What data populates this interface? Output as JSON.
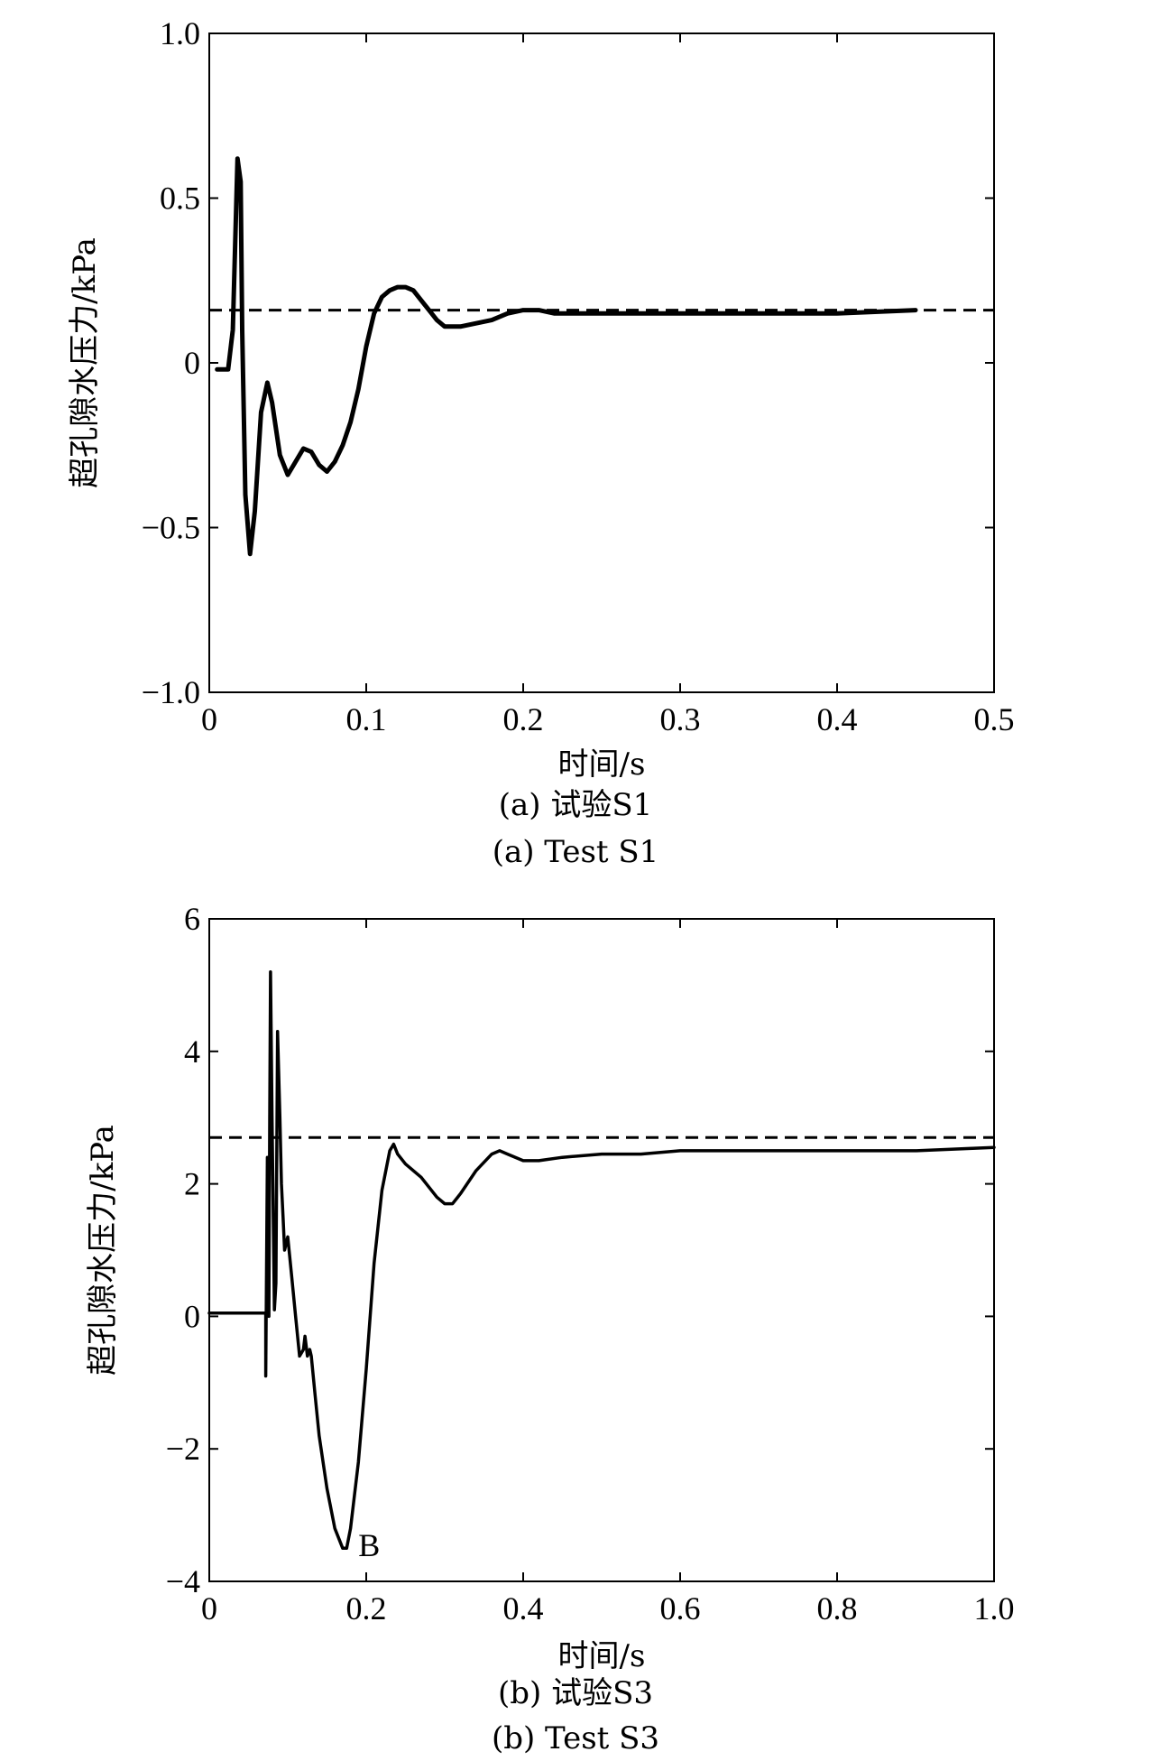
{
  "chart_data": [
    {
      "type": "line",
      "id": "a",
      "xlabel": "时间/s",
      "ylabel": "超孔隙水压力/kPa",
      "xlim": [
        0,
        0.5
      ],
      "ylim": [
        -1.0,
        1.0
      ],
      "xticks": [
        0,
        0.1,
        0.2,
        0.3,
        0.4,
        0.5
      ],
      "xtick_labels": [
        "0",
        "0.1",
        "0.2",
        "0.3",
        "0.4",
        "0.5"
      ],
      "yticks": [
        -1.0,
        -0.5,
        0,
        0.5,
        1.0
      ],
      "ytick_labels": [
        "−1.0",
        "−0.5",
        "0",
        "0.5",
        "1.0"
      ],
      "caption_cn": "(a) 试验S1",
      "caption_en": "(a) Test S1",
      "reference_line": 0.16,
      "series": [
        {
          "line_style": "solid",
          "x": [
            0.005,
            0.012,
            0.015,
            0.018,
            0.02,
            0.021,
            0.023,
            0.026,
            0.029,
            0.033,
            0.037,
            0.04,
            0.045,
            0.05,
            0.055,
            0.06,
            0.065,
            0.07,
            0.075,
            0.08,
            0.085,
            0.09,
            0.095,
            0.1,
            0.105,
            0.11,
            0.115,
            0.12,
            0.125,
            0.13,
            0.135,
            0.14,
            0.145,
            0.15,
            0.155,
            0.16,
            0.17,
            0.18,
            0.19,
            0.2,
            0.21,
            0.22,
            0.24,
            0.26,
            0.3,
            0.35,
            0.4,
            0.45
          ],
          "y": [
            -0.02,
            -0.02,
            0.1,
            0.62,
            0.55,
            0.1,
            -0.4,
            -0.58,
            -0.45,
            -0.15,
            -0.06,
            -0.12,
            -0.28,
            -0.34,
            -0.3,
            -0.26,
            -0.27,
            -0.31,
            -0.33,
            -0.3,
            -0.25,
            -0.18,
            -0.08,
            0.05,
            0.15,
            0.2,
            0.22,
            0.23,
            0.23,
            0.22,
            0.19,
            0.16,
            0.13,
            0.11,
            0.11,
            0.11,
            0.12,
            0.13,
            0.15,
            0.16,
            0.16,
            0.15,
            0.15,
            0.15,
            0.15,
            0.15,
            0.15,
            0.16
          ]
        }
      ]
    },
    {
      "type": "line",
      "id": "b",
      "xlabel": "时间/s",
      "ylabel": "超孔隙水压力/kPa",
      "xlim": [
        0,
        1.0
      ],
      "ylim": [
        -4,
        6
      ],
      "xticks": [
        0,
        0.2,
        0.4,
        0.6,
        0.8,
        1.0
      ],
      "xtick_labels": [
        "0",
        "0.2",
        "0.4",
        "0.6",
        "0.8",
        "1.0"
      ],
      "yticks": [
        -4,
        -2,
        0,
        2,
        4,
        6
      ],
      "ytick_labels": [
        "−4",
        "−2",
        "0",
        "2",
        "4",
        "6"
      ],
      "caption_cn": "(b) 试验S3",
      "caption_en": "(b) Test S3",
      "reference_line": 2.7,
      "annotation": {
        "text": "B",
        "x": 0.19,
        "y": -3.4
      },
      "series": [
        {
          "line_style": "solid",
          "x": [
            0.0,
            0.02,
            0.04,
            0.06,
            0.072,
            0.072,
            0.074,
            0.076,
            0.077,
            0.078,
            0.08,
            0.083,
            0.085,
            0.087,
            0.09,
            0.092,
            0.094,
            0.096,
            0.1,
            0.105,
            0.11,
            0.115,
            0.12,
            0.122,
            0.125,
            0.128,
            0.13,
            0.135,
            0.14,
            0.15,
            0.16,
            0.17,
            0.175,
            0.18,
            0.19,
            0.2,
            0.21,
            0.22,
            0.23,
            0.235,
            0.24,
            0.25,
            0.27,
            0.29,
            0.3,
            0.31,
            0.32,
            0.34,
            0.36,
            0.37,
            0.38,
            0.4,
            0.42,
            0.45,
            0.5,
            0.55,
            0.6,
            0.7,
            0.8,
            0.9,
            1.0
          ],
          "y": [
            0.05,
            0.05,
            0.05,
            0.05,
            0.05,
            -0.9,
            2.4,
            0.0,
            3.0,
            5.2,
            3.0,
            0.1,
            0.5,
            4.3,
            3.0,
            2.0,
            1.5,
            1.0,
            1.2,
            0.6,
            0.0,
            -0.6,
            -0.5,
            -0.3,
            -0.6,
            -0.5,
            -0.6,
            -1.2,
            -1.8,
            -2.6,
            -3.2,
            -3.5,
            -3.5,
            -3.2,
            -2.2,
            -0.8,
            0.8,
            1.9,
            2.5,
            2.6,
            2.45,
            2.3,
            2.1,
            1.8,
            1.7,
            1.7,
            1.85,
            2.2,
            2.45,
            2.5,
            2.45,
            2.35,
            2.35,
            2.4,
            2.45,
            2.45,
            2.5,
            2.5,
            2.5,
            2.5,
            2.55
          ]
        }
      ]
    }
  ]
}
